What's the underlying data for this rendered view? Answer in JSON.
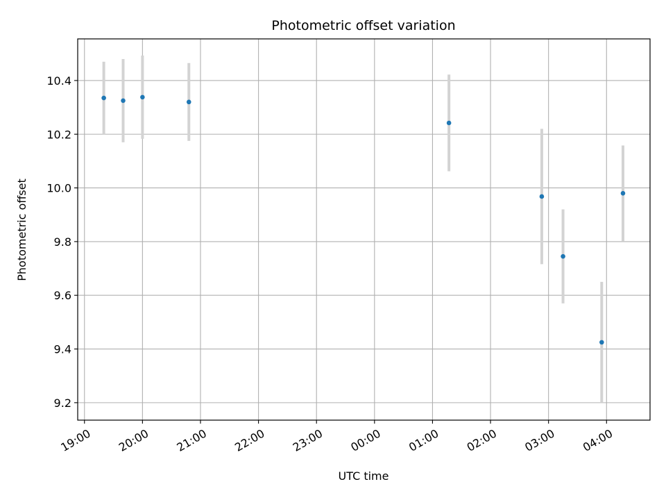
{
  "chart_data": {
    "type": "scatter",
    "title": "Photometric offset variation",
    "xlabel": "UTC time",
    "ylabel": "Photometric offset",
    "x_ticks": [
      "19:00",
      "20:00",
      "21:00",
      "22:00",
      "23:00",
      "00:00",
      "01:00",
      "02:00",
      "03:00",
      "04:00"
    ],
    "y_ticks": [
      "9.2",
      "9.4",
      "9.6",
      "9.8",
      "10.0",
      "10.2",
      "10.4"
    ],
    "xlim": [
      "18:53",
      "04:45"
    ],
    "ylim": [
      9.135,
      10.555
    ],
    "grid": true,
    "colors": {
      "point": "#1f77b4",
      "errorbar": "#d3d3d3",
      "grid": "#b0b0b0"
    },
    "series": [
      {
        "points": [
          {
            "x": "19:20",
            "y": 10.335,
            "err": 0.135
          },
          {
            "x": "19:40",
            "y": 10.325,
            "err": 0.155
          },
          {
            "x": "20:00",
            "y": 10.338,
            "err": 0.155
          },
          {
            "x": "20:48",
            "y": 10.32,
            "err": 0.145
          },
          {
            "x": "01:17",
            "y": 10.242,
            "err": 0.18
          },
          {
            "x": "02:53",
            "y": 9.968,
            "err": 0.252
          },
          {
            "x": "03:15",
            "y": 9.745,
            "err": 0.175
          },
          {
            "x": "03:55",
            "y": 9.425,
            "err": 0.225
          },
          {
            "x": "04:17",
            "y": 9.98,
            "err": 0.178
          }
        ]
      }
    ]
  }
}
